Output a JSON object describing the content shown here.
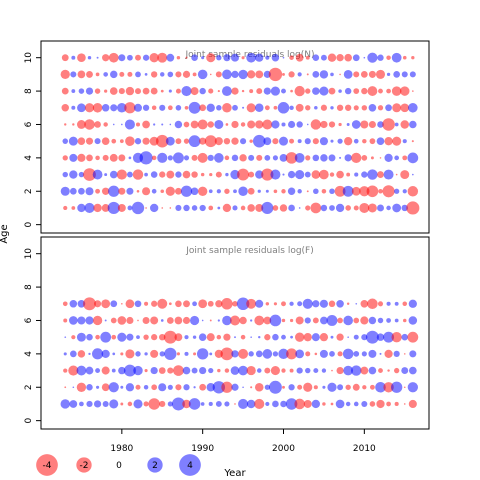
{
  "chart_data": {
    "type": "scatter",
    "subtype": "bubble-residual-plot",
    "xlabel": "Year",
    "ylabel": "Age",
    "xlim": [
      1970,
      2018
    ],
    "x_ticks": [
      1980,
      1990,
      2000,
      2010
    ],
    "grid": false,
    "colors": {
      "negative": "#FF0000",
      "positive": "#0000FF",
      "opacity": 0.5
    },
    "years": [
      1973,
      2016
    ],
    "panels": [
      {
        "title": "Joint sample residuals log(N)",
        "ylim": [
          -0.5,
          11
        ],
        "y_ticks": [
          0,
          2,
          4,
          6,
          8,
          10
        ],
        "ages": [
          1,
          10
        ],
        "seed": 11
      },
      {
        "title": "Joint sample residuals log(F)",
        "ylim": [
          -0.5,
          11
        ],
        "y_ticks": [
          0,
          2,
          4,
          6,
          8,
          10
        ],
        "ages": [
          1,
          7
        ],
        "seed": 29
      }
    ],
    "legend": {
      "position": "bottom-left",
      "entries": [
        {
          "label": "-4",
          "value": -4
        },
        {
          "label": "-2",
          "value": -2
        },
        {
          "label": "0",
          "value": 0
        },
        {
          "label": "2",
          "value": 2
        },
        {
          "label": "4",
          "value": 4
        }
      ]
    }
  }
}
